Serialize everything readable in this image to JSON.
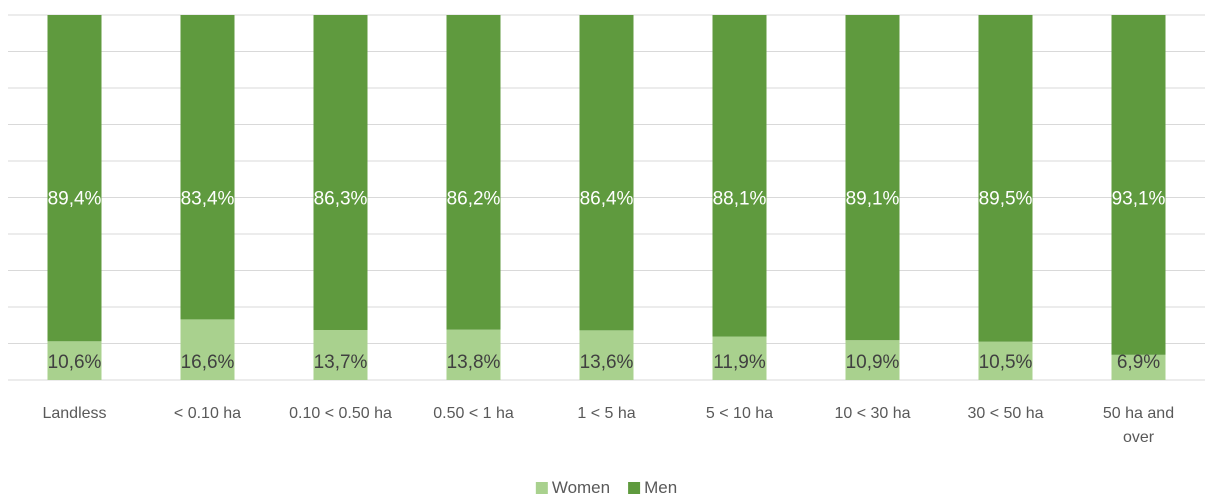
{
  "chart_data": {
    "type": "bar",
    "stacked": true,
    "categories": [
      [
        "Landless"
      ],
      [
        "< 0.10 ha"
      ],
      [
        "0.10 < 0.50 ha"
      ],
      [
        "0.50 < 1 ha"
      ],
      [
        "1 < 5 ha"
      ],
      [
        "5 < 10 ha"
      ],
      [
        "10 < 30 ha"
      ],
      [
        "30 < 50 ha"
      ],
      [
        "50 ha and",
        "over"
      ]
    ],
    "series": [
      {
        "name": "Women",
        "color": "#a9d18e",
        "values": [
          10.6,
          16.6,
          13.7,
          13.8,
          13.6,
          11.9,
          10.9,
          10.5,
          6.9
        ],
        "labels": [
          "10,6%",
          "16,6%",
          "13,7%",
          "13,8%",
          "13,6%",
          "11,9%",
          "10,9%",
          "10,5%",
          "6,9%"
        ],
        "label_color": "#404040"
      },
      {
        "name": "Men",
        "color": "#5f9a3e",
        "values": [
          89.4,
          83.4,
          86.3,
          86.2,
          86.4,
          88.1,
          89.1,
          89.5,
          93.1
        ],
        "labels": [
          "89,4%",
          "83,4%",
          "86,3%",
          "86,2%",
          "86,4%",
          "88,1%",
          "89,1%",
          "89,5%",
          "93,1%"
        ],
        "label_color": "#ffffff"
      }
    ],
    "ylim": [
      0,
      100
    ],
    "grid": true,
    "legend_position": "bottom-center"
  }
}
